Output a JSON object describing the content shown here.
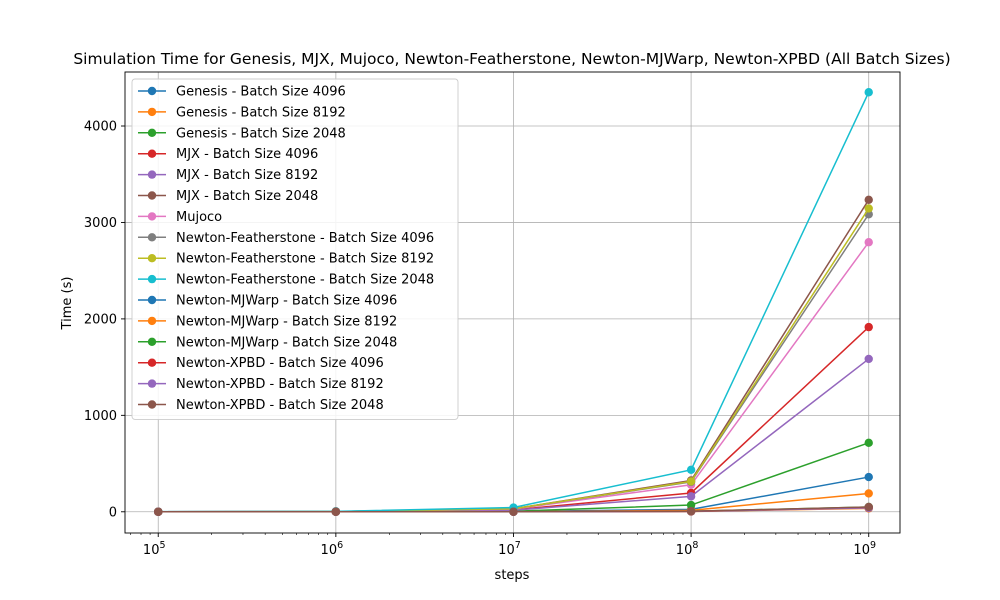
{
  "chart_data": {
    "type": "line",
    "title": "Simulation Time for Genesis, MJX, Mujoco, Newton-Featherstone, Newton-MJWarp, Newton-XPBD (All Batch Sizes)",
    "xlabel": "steps",
    "ylabel": "Time (s)",
    "xscale": "log",
    "grid": true,
    "legend_position": "upper-left",
    "xlim": [
      65000,
      1500000000
    ],
    "ylim": [
      -220,
      4560
    ],
    "x": [
      100000,
      1000000,
      10000000,
      100000000,
      1000000000
    ],
    "x_ticks": [
      {
        "value": 100000,
        "base": "10",
        "exp": "5"
      },
      {
        "value": 1000000,
        "base": "10",
        "exp": "6"
      },
      {
        "value": 10000000,
        "base": "10",
        "exp": "7"
      },
      {
        "value": 100000000,
        "base": "10",
        "exp": "8"
      },
      {
        "value": 1000000000,
        "base": "10",
        "exp": "9"
      }
    ],
    "y_ticks": [
      0,
      1000,
      2000,
      3000,
      4000
    ],
    "series": [
      {
        "name": "Genesis - Batch Size 4096",
        "color": "#1f77b4",
        "values": [
          0.1,
          0.4,
          3,
          25,
          360
        ]
      },
      {
        "name": "Genesis - Batch Size 8192",
        "color": "#ff7f0e",
        "values": [
          0.1,
          0.3,
          2,
          15,
          190
        ]
      },
      {
        "name": "Genesis - Batch Size 2048",
        "color": "#2ca02c",
        "values": [
          0.2,
          0.8,
          6,
          70,
          715
        ]
      },
      {
        "name": "MJX - Batch Size 4096",
        "color": "#d62728",
        "values": [
          0.5,
          2,
          20,
          195,
          1915
        ]
      },
      {
        "name": "MJX - Batch Size 8192",
        "color": "#9467bd",
        "values": [
          0.4,
          1.6,
          16,
          160,
          1585
        ]
      },
      {
        "name": "MJX - Batch Size 2048",
        "color": "#8c564b",
        "values": [
          1,
          3,
          32,
          325,
          3235
        ]
      },
      {
        "name": "Mujoco",
        "color": "#e377c2",
        "values": [
          1,
          3,
          28,
          280,
          2795
        ]
      },
      {
        "name": "Newton-Featherstone - Batch Size 4096",
        "color": "#7f7f7f",
        "values": [
          1,
          3,
          31,
          310,
          3085
        ]
      },
      {
        "name": "Newton-Featherstone - Batch Size 8192",
        "color": "#bcbd22",
        "values": [
          1,
          3,
          31,
          315,
          3145
        ]
      },
      {
        "name": "Newton-Featherstone - Batch Size 2048",
        "color": "#17becf",
        "values": [
          1.5,
          4.5,
          44,
          435,
          4350
        ]
      },
      {
        "name": "Newton-MJWarp - Batch Size 4096",
        "color": "#1f77b4",
        "values": [
          0.05,
          0.1,
          0.5,
          4,
          40
        ]
      },
      {
        "name": "Newton-MJWarp - Batch Size 8192",
        "color": "#ff7f0e",
        "values": [
          0.05,
          0.1,
          0.4,
          3,
          35
        ]
      },
      {
        "name": "Newton-MJWarp - Batch Size 2048",
        "color": "#2ca02c",
        "values": [
          0.05,
          0.1,
          0.6,
          5,
          50
        ]
      },
      {
        "name": "Newton-XPBD - Batch Size 4096",
        "color": "#d62728",
        "values": [
          0.05,
          0.1,
          0.5,
          4,
          45
        ]
      },
      {
        "name": "Newton-XPBD - Batch Size 8192",
        "color": "#9467bd",
        "values": [
          0.05,
          0.1,
          0.5,
          4,
          40
        ]
      },
      {
        "name": "Newton-XPBD - Batch Size 2048",
        "color": "#8c564b",
        "values": [
          0.05,
          0.1,
          0.6,
          5,
          50
        ]
      }
    ]
  }
}
